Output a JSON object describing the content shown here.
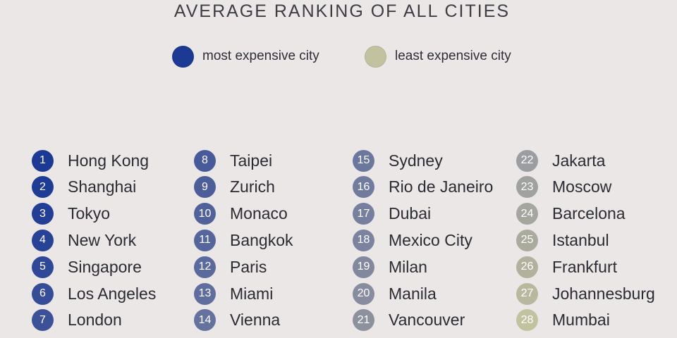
{
  "chart_data": {
    "type": "table",
    "title": "AVERAGE RANKING OF ALL CITIES",
    "legend": {
      "position": "top-center",
      "items": [
        {
          "label": "most expensive city",
          "color": "#1c3a94"
        },
        {
          "label": "least expensive city",
          "color": "#c3c2a0"
        }
      ]
    },
    "rankings": [
      {
        "rank": "1",
        "city": "Hong Kong",
        "color": "#1c3a94"
      },
      {
        "rank": "2",
        "city": "Shanghai",
        "color": "#1f3c94"
      },
      {
        "rank": "3",
        "city": "Tokyo",
        "color": "#233f95"
      },
      {
        "rank": "4",
        "city": "New York",
        "color": "#284295"
      },
      {
        "rank": "5",
        "city": "Singapore",
        "color": "#2e4796"
      },
      {
        "rank": "6",
        "city": "Los Angeles",
        "color": "#354c97"
      },
      {
        "rank": "7",
        "city": "London",
        "color": "#3c5298"
      },
      {
        "rank": "8",
        "city": "Taipei",
        "color": "#475a99"
      },
      {
        "rank": "9",
        "city": "Zurich",
        "color": "#4c5e9a"
      },
      {
        "rank": "10",
        "city": "Monaco",
        "color": "#51629b"
      },
      {
        "rank": "11",
        "city": "Bangkok",
        "color": "#56669c"
      },
      {
        "rank": "12",
        "city": "Paris",
        "color": "#5b6a9c"
      },
      {
        "rank": "13",
        "city": "Miami",
        "color": "#606e9d"
      },
      {
        "rank": "14",
        "city": "Vienna",
        "color": "#65729d"
      },
      {
        "rank": "15",
        "city": "Sydney",
        "color": "#6c779d"
      },
      {
        "rank": "16",
        "city": "Rio de Janeiro",
        "color": "#717b9e"
      },
      {
        "rank": "17",
        "city": "Dubai",
        "color": "#767f9e"
      },
      {
        "rank": "18",
        "city": "Mexico City",
        "color": "#7c839e"
      },
      {
        "rank": "19",
        "city": "Milan",
        "color": "#82889e"
      },
      {
        "rank": "20",
        "city": "Manila",
        "color": "#878c9e"
      },
      {
        "rank": "21",
        "city": "Vancouver",
        "color": "#8d919e"
      },
      {
        "rank": "22",
        "city": "Jakarta",
        "color": "#9b9da0"
      },
      {
        "rank": "23",
        "city": "Moscow",
        "color": "#a0a29f"
      },
      {
        "rank": "24",
        "city": "Barcelona",
        "color": "#a5a69e"
      },
      {
        "rank": "25",
        "city": "Istanbul",
        "color": "#aaab9d"
      },
      {
        "rank": "26",
        "city": "Frankfurt",
        "color": "#b1b19d"
      },
      {
        "rank": "27",
        "city": "Johannesburg",
        "color": "#b8b89e"
      },
      {
        "rank": "28",
        "city": "Mumbai",
        "color": "#c3c2a0"
      }
    ]
  }
}
